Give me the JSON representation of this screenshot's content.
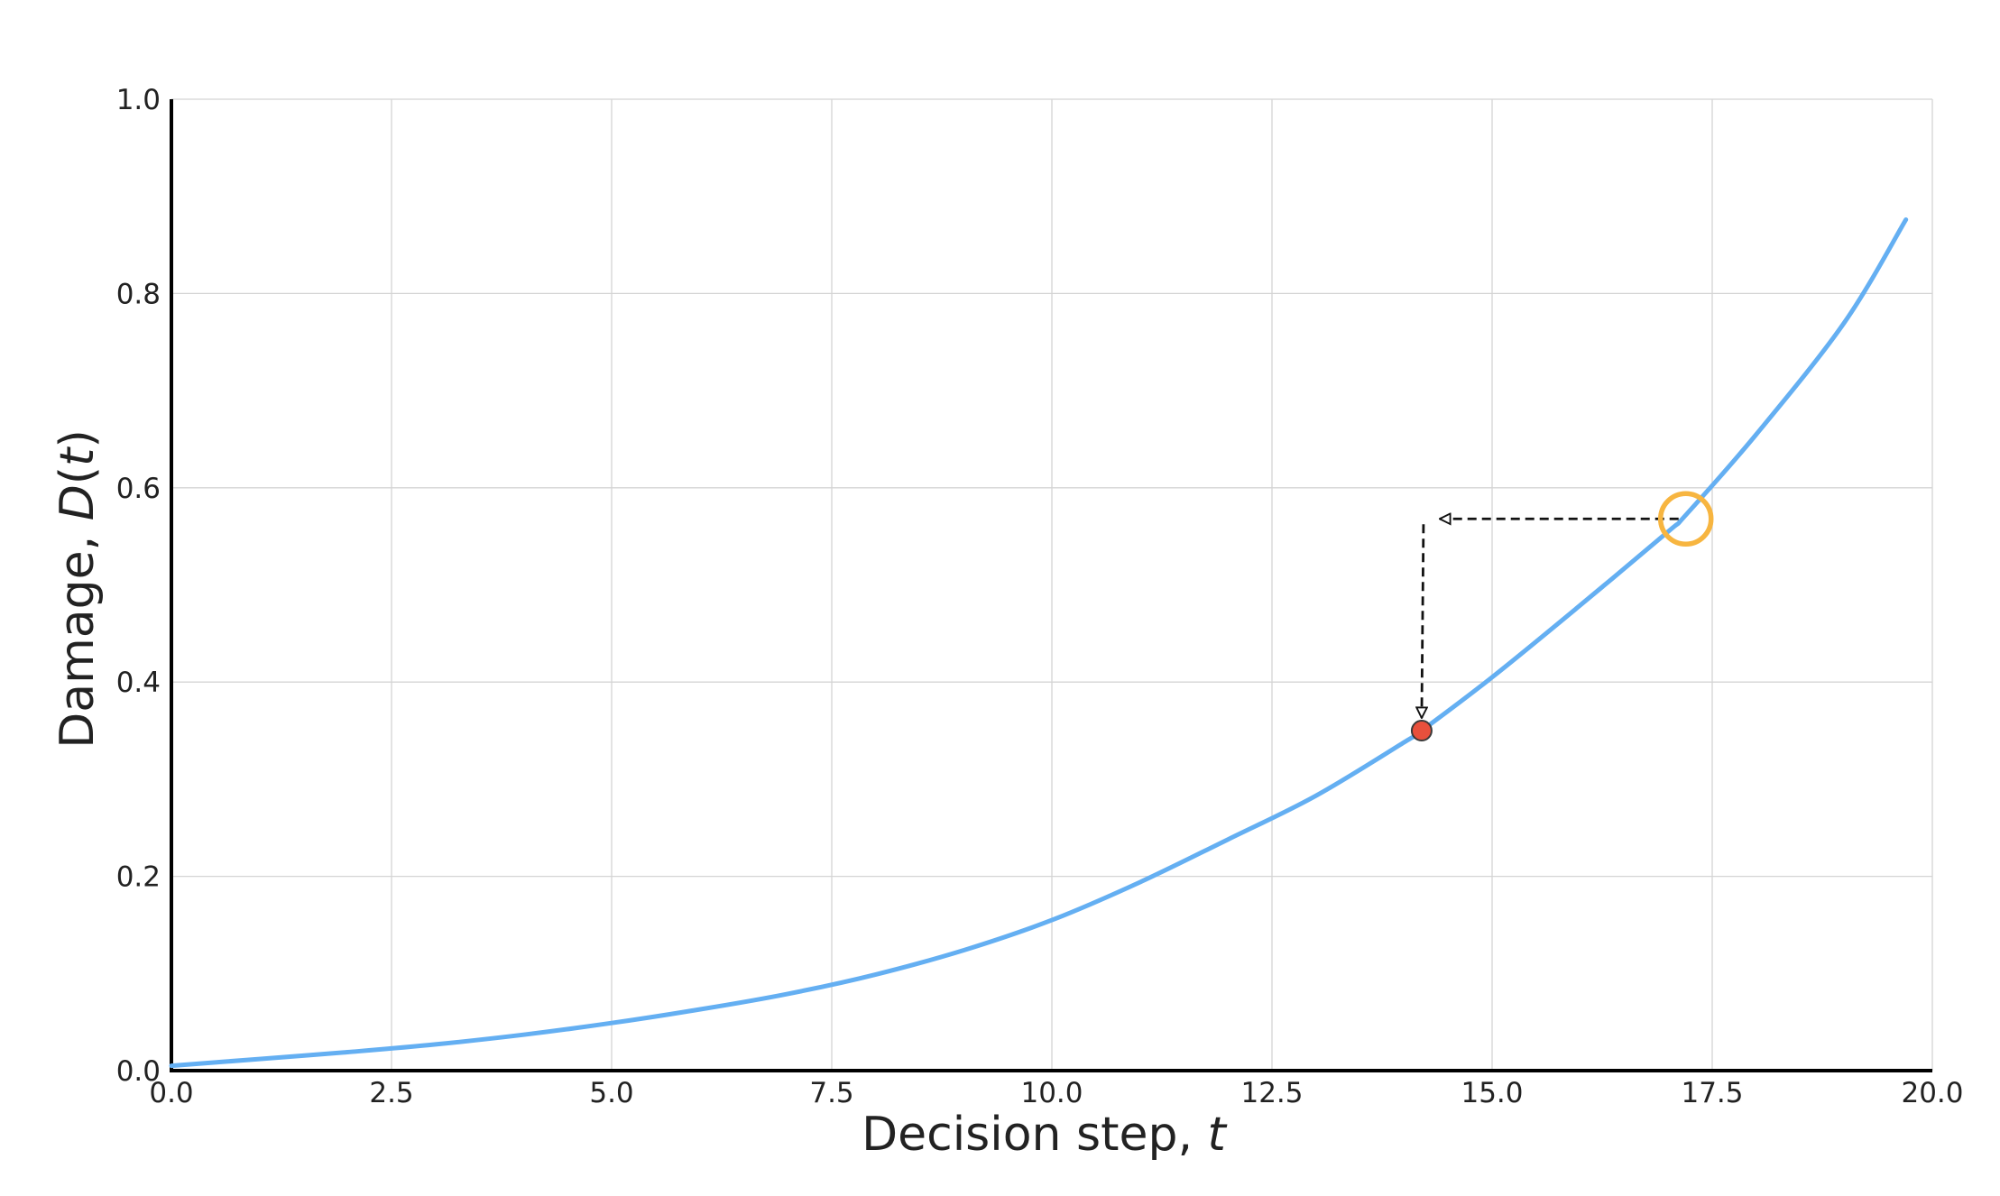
{
  "chart_data": {
    "type": "line",
    "xlabel": "Decision step, ",
    "xlabel_var": "t",
    "ylabel": "Damage, ",
    "ylabel_var": "D",
    "ylabel_arg_open": "(",
    "ylabel_arg_var": "t",
    "ylabel_arg_close": ")",
    "xlim": [
      0.0,
      20.0
    ],
    "ylim": [
      0.0,
      1.0
    ],
    "x_ticks": [
      0.0,
      2.5,
      5.0,
      7.5,
      10.0,
      12.5,
      15.0,
      17.5,
      20.0
    ],
    "x_tick_labels": [
      "0.0",
      "2.5",
      "5.0",
      "7.5",
      "10.0",
      "12.5",
      "15.0",
      "17.5",
      "20.0"
    ],
    "y_ticks": [
      0.0,
      0.2,
      0.4,
      0.6,
      0.8,
      1.0
    ],
    "y_tick_labels": [
      "0.0",
      "0.2",
      "0.4",
      "0.6",
      "0.8",
      "1.0"
    ],
    "grid": true,
    "series": [
      {
        "color": "#64aff2",
        "x": [
          0.0,
          1.0,
          2.0,
          3.0,
          4.0,
          5.0,
          6.0,
          7.0,
          8.0,
          9.0,
          10.0,
          11.0,
          12.0,
          13.0,
          14.0,
          14.2,
          15.0,
          16.0,
          17.0,
          17.2,
          18.0,
          19.0,
          19.7
        ],
        "y": [
          0.005,
          0.012,
          0.019,
          0.027,
          0.037,
          0.049,
          0.063,
          0.079,
          0.099,
          0.124,
          0.155,
          0.194,
          0.238,
          0.283,
          0.338,
          0.35,
          0.405,
          0.479,
          0.555,
          0.572,
          0.655,
          0.77,
          0.876
        ]
      }
    ],
    "annotations": {
      "marked_point": {
        "x": 14.2,
        "y": 0.35,
        "color": "#e8503c"
      },
      "highlight_circle": {
        "x": 17.2,
        "y": 0.568,
        "color": "#f7b540"
      },
      "arrow_path": {
        "from": {
          "x": 17.2,
          "y": 0.568
        },
        "corner": {
          "x": 14.2,
          "y": 0.568
        },
        "to": {
          "x": 14.2,
          "y": 0.35
        },
        "style": "dashed",
        "color": "#111111"
      }
    }
  }
}
